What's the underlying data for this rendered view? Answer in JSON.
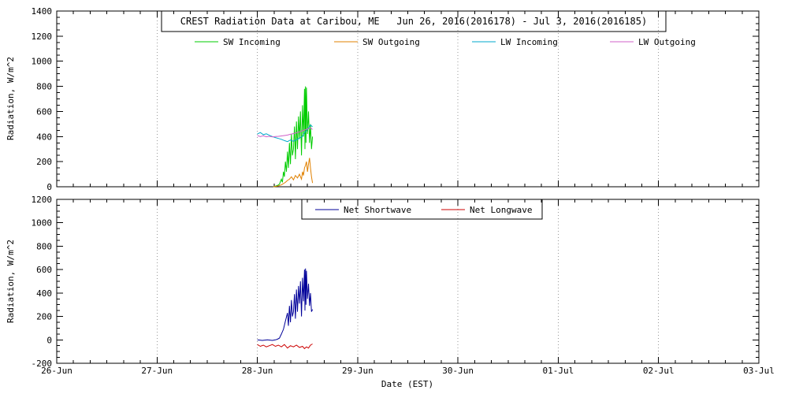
{
  "chart_data": [
    {
      "type": "line",
      "panel": "top",
      "title": "CREST Radiation Data at Caribou, ME   Jun 26, 2016(2016178) - Jul 3, 2016(2016185)",
      "ylabel": "Radiation, W/m^2",
      "ylim": [
        0,
        1400
      ],
      "ytick_step": 200,
      "ytick_minor_step": 50,
      "xlim_days": [
        0,
        7
      ],
      "grid": "vertical-dotted-at-day-ticks",
      "legend_position": "inside-top",
      "series": [
        {
          "name": "SW Incoming",
          "color": "#00cc00",
          "points": [
            [
              2.16,
              0
            ],
            [
              2.18,
              5
            ],
            [
              2.2,
              10
            ],
            [
              2.22,
              20
            ],
            [
              2.24,
              60
            ],
            [
              2.25,
              35
            ],
            [
              2.26,
              120
            ],
            [
              2.27,
              80
            ],
            [
              2.28,
              200
            ],
            [
              2.29,
              120
            ],
            [
              2.3,
              280
            ],
            [
              2.31,
              150
            ],
            [
              2.32,
              350
            ],
            [
              2.33,
              180
            ],
            [
              2.34,
              420
            ],
            [
              2.35,
              250
            ],
            [
              2.36,
              300
            ],
            [
              2.37,
              480
            ],
            [
              2.38,
              220
            ],
            [
              2.39,
              520
            ],
            [
              2.4,
              300
            ],
            [
              2.41,
              560
            ],
            [
              2.42,
              380
            ],
            [
              2.43,
              600
            ],
            [
              2.44,
              250
            ],
            [
              2.45,
              650
            ],
            [
              2.46,
              400
            ],
            [
              2.47,
              780
            ],
            [
              2.475,
              300
            ],
            [
              2.48,
              800
            ],
            [
              2.485,
              350
            ],
            [
              2.49,
              790
            ],
            [
              2.5,
              420
            ],
            [
              2.51,
              600
            ],
            [
              2.52,
              350
            ],
            [
              2.53,
              500
            ],
            [
              2.54,
              300
            ],
            [
              2.55,
              400
            ]
          ]
        },
        {
          "name": "SW Outgoing",
          "color": "#e08000",
          "points": [
            [
              2.16,
              0
            ],
            [
              2.2,
              5
            ],
            [
              2.24,
              15
            ],
            [
              2.28,
              35
            ],
            [
              2.3,
              50
            ],
            [
              2.32,
              60
            ],
            [
              2.34,
              80
            ],
            [
              2.36,
              55
            ],
            [
              2.38,
              90
            ],
            [
              2.4,
              70
            ],
            [
              2.42,
              100
            ],
            [
              2.44,
              60
            ],
            [
              2.45,
              120
            ],
            [
              2.46,
              90
            ],
            [
              2.47,
              150
            ],
            [
              2.48,
              170
            ],
            [
              2.49,
              200
            ],
            [
              2.5,
              120
            ],
            [
              2.51,
              180
            ],
            [
              2.52,
              230
            ],
            [
              2.53,
              150
            ],
            [
              2.54,
              80
            ],
            [
              2.55,
              30
            ]
          ]
        },
        {
          "name": "LW Incoming",
          "color": "#00a9cc",
          "points": [
            [
              2.0,
              420
            ],
            [
              2.03,
              432
            ],
            [
              2.06,
              415
            ],
            [
              2.09,
              422
            ],
            [
              2.12,
              410
            ],
            [
              2.15,
              400
            ],
            [
              2.18,
              392
            ],
            [
              2.21,
              385
            ],
            [
              2.24,
              378
            ],
            [
              2.27,
              368
            ],
            [
              2.3,
              360
            ],
            [
              2.33,
              372
            ],
            [
              2.36,
              362
            ],
            [
              2.39,
              375
            ],
            [
              2.42,
              388
            ],
            [
              2.45,
              402
            ],
            [
              2.47,
              430
            ],
            [
              2.49,
              446
            ],
            [
              2.51,
              470
            ],
            [
              2.53,
              492
            ],
            [
              2.55,
              478
            ]
          ]
        },
        {
          "name": "LW Outgoing",
          "color": "#d060c8",
          "points": [
            [
              2.0,
              408
            ],
            [
              2.03,
              400
            ],
            [
              2.06,
              406
            ],
            [
              2.09,
              398
            ],
            [
              2.12,
              402
            ],
            [
              2.15,
              397
            ],
            [
              2.18,
              400
            ],
            [
              2.21,
              402
            ],
            [
              2.24,
              405
            ],
            [
              2.27,
              408
            ],
            [
              2.3,
              412
            ],
            [
              2.33,
              418
            ],
            [
              2.36,
              424
            ],
            [
              2.39,
              430
            ],
            [
              2.42,
              438
            ],
            [
              2.45,
              446
            ],
            [
              2.47,
              452
            ],
            [
              2.49,
              458
            ],
            [
              2.51,
              463
            ],
            [
              2.53,
              470
            ],
            [
              2.55,
              456
            ]
          ]
        }
      ]
    },
    {
      "type": "line",
      "panel": "bottom",
      "ylabel": "Radiation, W/m^2",
      "xlabel": "Date (EST)",
      "ylim": [
        -200,
        1200
      ],
      "ytick_step": 200,
      "ytick_minor_step": 50,
      "xlim_days": [
        0,
        7
      ],
      "xtick_labels": [
        "26-Jun",
        "27-Jun",
        "28-Jun",
        "29-Jun",
        "30-Jun",
        "01-Jul",
        "02-Jul",
        "03-Jul"
      ],
      "grid": "vertical-dotted-at-day-ticks",
      "legend_position": "inside-top",
      "series": [
        {
          "name": "Net Shortwave",
          "color": "#000099",
          "points": [
            [
              2.0,
              0
            ],
            [
              2.05,
              -5
            ],
            [
              2.1,
              0
            ],
            [
              2.15,
              -5
            ],
            [
              2.18,
              0
            ],
            [
              2.2,
              5
            ],
            [
              2.22,
              15
            ],
            [
              2.24,
              50
            ],
            [
              2.26,
              90
            ],
            [
              2.28,
              160
            ],
            [
              2.3,
              230
            ],
            [
              2.31,
              120
            ],
            [
              2.32,
              290
            ],
            [
              2.33,
              150
            ],
            [
              2.34,
              340
            ],
            [
              2.35,
              200
            ],
            [
              2.36,
              240
            ],
            [
              2.37,
              390
            ],
            [
              2.38,
              180
            ],
            [
              2.39,
              430
            ],
            [
              2.4,
              240
            ],
            [
              2.41,
              460
            ],
            [
              2.42,
              310
            ],
            [
              2.43,
              500
            ],
            [
              2.44,
              200
            ],
            [
              2.45,
              530
            ],
            [
              2.46,
              330
            ],
            [
              2.47,
              600
            ],
            [
              2.475,
              250
            ],
            [
              2.48,
              610
            ],
            [
              2.485,
              300
            ],
            [
              2.49,
              590
            ],
            [
              2.5,
              350
            ],
            [
              2.51,
              480
            ],
            [
              2.52,
              290
            ],
            [
              2.53,
              400
            ],
            [
              2.54,
              240
            ],
            [
              2.55,
              260
            ]
          ]
        },
        {
          "name": "Net Longwave",
          "color": "#cc0000",
          "points": [
            [
              2.0,
              -40
            ],
            [
              2.03,
              -55
            ],
            [
              2.06,
              -45
            ],
            [
              2.09,
              -60
            ],
            [
              2.12,
              -50
            ],
            [
              2.15,
              -40
            ],
            [
              2.18,
              -55
            ],
            [
              2.21,
              -45
            ],
            [
              2.24,
              -60
            ],
            [
              2.27,
              -40
            ],
            [
              2.3,
              -70
            ],
            [
              2.33,
              -50
            ],
            [
              2.36,
              -60
            ],
            [
              2.39,
              -45
            ],
            [
              2.42,
              -65
            ],
            [
              2.45,
              -55
            ],
            [
              2.47,
              -75
            ],
            [
              2.49,
              -60
            ],
            [
              2.51,
              -70
            ],
            [
              2.53,
              -45
            ],
            [
              2.55,
              -35
            ]
          ]
        }
      ]
    }
  ]
}
